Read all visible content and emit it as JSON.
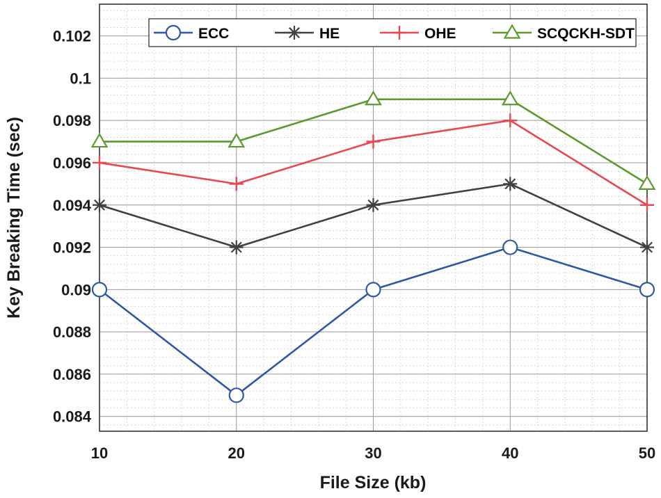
{
  "chart_data": {
    "type": "line",
    "title": "",
    "xlabel": "File Size (kb)",
    "ylabel": "Key Breaking Time (sec)",
    "x": [
      10,
      20,
      30,
      40,
      50
    ],
    "xlim": [
      10,
      50
    ],
    "ylim": [
      0.0833,
      0.1035
    ],
    "xticks": [
      10,
      20,
      30,
      40,
      50
    ],
    "xtick_labels": [
      "10",
      "20",
      "30",
      "40",
      "50"
    ],
    "yticks": [
      0.084,
      0.086,
      0.088,
      0.09,
      0.092,
      0.094,
      0.096,
      0.098,
      0.1,
      0.102
    ],
    "ytick_labels": [
      "0.084",
      "0.086",
      "0.088",
      "0.09",
      "0.092",
      "0.094",
      "0.096",
      "0.098",
      "0.1",
      "0.102"
    ],
    "grid": true,
    "minor_grid": true,
    "legend_position": "top-right",
    "series": [
      {
        "name": "ECC",
        "values": [
          0.09,
          0.085,
          0.09,
          0.092,
          0.09
        ],
        "color": "#2e56a6",
        "marker": "circle"
      },
      {
        "name": "HE",
        "values": [
          0.094,
          0.092,
          0.094,
          0.095,
          0.092
        ],
        "color": "#404040",
        "marker": "asterisk"
      },
      {
        "name": "OHE",
        "values": [
          0.096,
          0.095,
          0.097,
          0.098,
          0.094
        ],
        "color": "#e8484f",
        "marker": "plus"
      },
      {
        "name": "SCQCKH-SDT",
        "values": [
          0.097,
          0.097,
          0.099,
          0.099,
          0.095
        ],
        "color": "#5c9a2e",
        "marker": "triangle"
      }
    ]
  }
}
